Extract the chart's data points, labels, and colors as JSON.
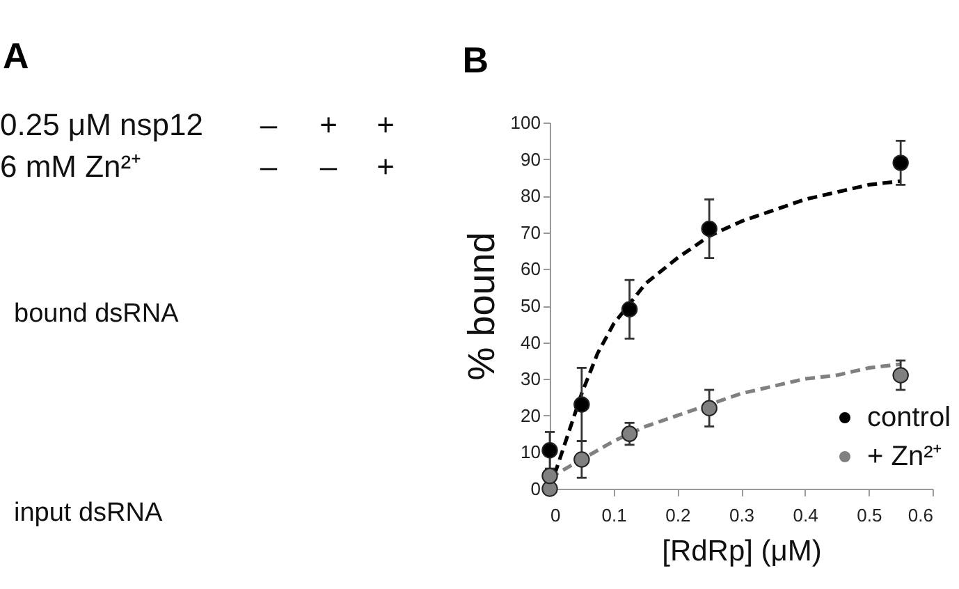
{
  "chart_data": [
    {
      "type": "other",
      "title": "A",
      "annotations": [
        "0.25 μM nsp12",
        "–",
        "+",
        "+",
        "6 mM Zn²⁺",
        "–",
        "–",
        "+",
        "bound dsRNA",
        "input dsRNA"
      ]
    },
    {
      "type": "scatter",
      "title": "B",
      "xlabel": "[RdRp] (μM)",
      "ylabel": "% bound",
      "xlim": [
        0,
        0.6
      ],
      "xticks": [
        0,
        0.1,
        0.2,
        0.3,
        0.4,
        0.5,
        0.6
      ],
      "ylim": [
        0,
        100
      ],
      "yticks": [
        0,
        10,
        20,
        30,
        40,
        50,
        60,
        70,
        80,
        90,
        100
      ],
      "legend": "bottom right",
      "series": [
        {
          "type": "line",
          "color": "#000000",
          "line_style": "dashed",
          "x": [
            0,
            0.025,
            0.05,
            0.075,
            0.1,
            0.15,
            0.2,
            0.25,
            0.3,
            0.35,
            0.4,
            0.45,
            0.5,
            0.55
          ],
          "values": [
            0,
            13,
            26,
            37,
            45,
            56,
            63,
            69,
            73,
            76,
            79,
            81,
            83,
            84
          ]
        },
        {
          "type": "line",
          "color": "#808080",
          "line_style": "dashed",
          "x": [
            0,
            0.05,
            0.1,
            0.15,
            0.2,
            0.25,
            0.3,
            0.35,
            0.4,
            0.45,
            0.5,
            0.55
          ],
          "values": [
            3,
            8,
            13,
            17,
            20,
            23,
            26,
            28,
            30,
            31,
            33,
            34
          ]
        },
        {
          "name": "control",
          "color": "#000000",
          "marker": "circle",
          "x": [
            0,
            0.05,
            0.125,
            0.25,
            0.55
          ],
          "values": [
            10.5,
            23,
            49,
            71,
            89
          ],
          "errors": [
            5,
            10,
            8,
            8,
            6
          ]
        },
        {
          "name": "+ Zn²⁺",
          "color": "#808080",
          "marker": "circle",
          "x": [
            0,
            0,
            0.05,
            0.125,
            0.25,
            0.55
          ],
          "values": [
            0,
            3.5,
            8,
            15,
            22,
            31
          ],
          "errors": [
            null,
            null,
            5,
            3,
            5,
            4
          ]
        }
      ]
    }
  ]
}
